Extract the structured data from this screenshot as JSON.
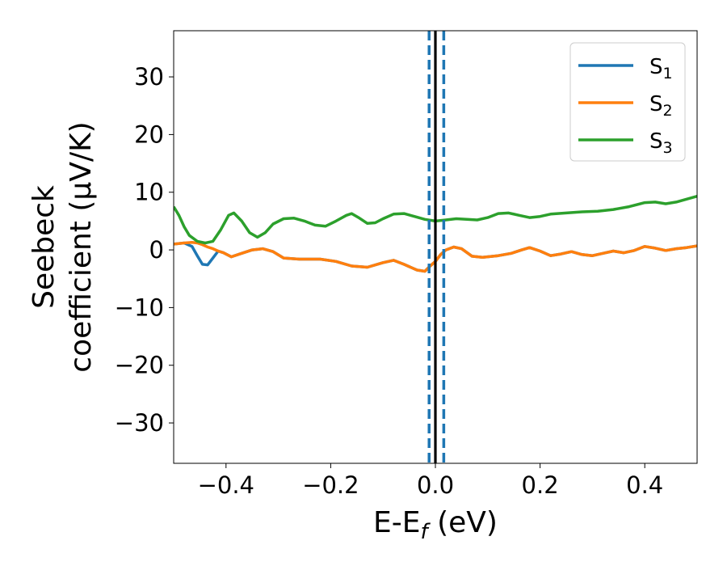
{
  "chart_data": {
    "type": "line",
    "xlabel": "E-E",
    "xlabel_sub": "f",
    "xlabel_unit": " (eV)",
    "ylabel_line1": "Seebeck",
    "ylabel_line2": "coefficient  (μV/K)",
    "xlim": [
      -0.5,
      0.5
    ],
    "ylim": [
      -37,
      38
    ],
    "xticks": [
      -0.4,
      -0.2,
      0.0,
      0.2,
      0.4
    ],
    "xtick_labels": [
      "−0.4",
      "−0.2",
      "0.0",
      "0.2",
      "0.4"
    ],
    "yticks": [
      -30,
      -20,
      -10,
      0,
      10,
      20,
      30
    ],
    "ytick_labels": [
      "−30",
      "−20",
      "−10",
      "0",
      "10",
      "20",
      "30"
    ],
    "grid": false,
    "legend_position": "top-right",
    "vlines": [
      {
        "x": 0.0,
        "style": "solid",
        "color": "#000000"
      },
      {
        "x": -0.012,
        "style": "dashed",
        "color": "#1f77b4"
      },
      {
        "x": 0.016,
        "style": "dashed",
        "color": "#1f77b4"
      }
    ],
    "series": [
      {
        "name": "S",
        "sub": "1",
        "color": "#1f77b4",
        "points": [
          [
            -0.5,
            1.0
          ],
          [
            -0.48,
            1.2
          ],
          [
            -0.465,
            0.6
          ],
          [
            -0.455,
            -1.0
          ],
          [
            -0.445,
            -2.5
          ],
          [
            -0.435,
            -2.6
          ],
          [
            -0.425,
            -1.4
          ],
          [
            -0.415,
            -0.2
          ],
          [
            -0.405,
            -0.5
          ],
          [
            -0.39,
            -1.2
          ],
          [
            -0.37,
            -0.6
          ],
          [
            -0.35,
            0.0
          ],
          [
            -0.33,
            0.2
          ],
          [
            -0.31,
            -0.3
          ],
          [
            -0.29,
            -1.4
          ],
          [
            -0.26,
            -1.6
          ],
          [
            -0.22,
            -1.6
          ],
          [
            -0.19,
            -2.0
          ],
          [
            -0.16,
            -2.8
          ],
          [
            -0.13,
            -3.0
          ],
          [
            -0.1,
            -2.2
          ],
          [
            -0.08,
            -1.8
          ],
          [
            -0.06,
            -2.5
          ],
          [
            -0.035,
            -3.5
          ],
          [
            -0.02,
            -3.7
          ],
          [
            -0.01,
            -2.8
          ],
          [
            0.0,
            -2.0
          ],
          [
            0.01,
            -0.8
          ],
          [
            0.02,
            0.0
          ],
          [
            0.035,
            0.5
          ],
          [
            0.05,
            0.2
          ],
          [
            0.07,
            -1.1
          ],
          [
            0.09,
            -1.3
          ],
          [
            0.12,
            -1.0
          ],
          [
            0.145,
            -0.6
          ],
          [
            0.165,
            0.0
          ],
          [
            0.18,
            0.4
          ],
          [
            0.2,
            -0.2
          ],
          [
            0.22,
            -1.0
          ],
          [
            0.24,
            -0.7
          ],
          [
            0.26,
            -0.3
          ],
          [
            0.28,
            -0.8
          ],
          [
            0.3,
            -1.0
          ],
          [
            0.32,
            -0.6
          ],
          [
            0.34,
            -0.2
          ],
          [
            0.36,
            -0.5
          ],
          [
            0.38,
            -0.1
          ],
          [
            0.4,
            0.6
          ],
          [
            0.42,
            0.3
          ],
          [
            0.44,
            -0.1
          ],
          [
            0.46,
            0.2
          ],
          [
            0.48,
            0.4
          ],
          [
            0.5,
            0.7
          ]
        ]
      },
      {
        "name": "S",
        "sub": "2",
        "color": "#ff7f0e",
        "points": [
          [
            -0.5,
            1.0
          ],
          [
            -0.48,
            1.2
          ],
          [
            -0.465,
            1.3
          ],
          [
            -0.455,
            1.2
          ],
          [
            -0.445,
            0.9
          ],
          [
            -0.435,
            0.5
          ],
          [
            -0.425,
            0.2
          ],
          [
            -0.415,
            -0.2
          ],
          [
            -0.405,
            -0.5
          ],
          [
            -0.39,
            -1.2
          ],
          [
            -0.37,
            -0.6
          ],
          [
            -0.35,
            0.0
          ],
          [
            -0.33,
            0.2
          ],
          [
            -0.31,
            -0.3
          ],
          [
            -0.29,
            -1.4
          ],
          [
            -0.26,
            -1.6
          ],
          [
            -0.22,
            -1.6
          ],
          [
            -0.19,
            -2.0
          ],
          [
            -0.16,
            -2.8
          ],
          [
            -0.13,
            -3.0
          ],
          [
            -0.1,
            -2.2
          ],
          [
            -0.08,
            -1.8
          ],
          [
            -0.06,
            -2.5
          ],
          [
            -0.035,
            -3.5
          ],
          [
            -0.02,
            -3.7
          ],
          [
            -0.01,
            -2.8
          ],
          [
            0.0,
            -2.0
          ],
          [
            0.01,
            -0.8
          ],
          [
            0.02,
            0.0
          ],
          [
            0.035,
            0.5
          ],
          [
            0.05,
            0.2
          ],
          [
            0.07,
            -1.1
          ],
          [
            0.09,
            -1.3
          ],
          [
            0.12,
            -1.0
          ],
          [
            0.145,
            -0.6
          ],
          [
            0.165,
            0.0
          ],
          [
            0.18,
            0.4
          ],
          [
            0.2,
            -0.2
          ],
          [
            0.22,
            -1.0
          ],
          [
            0.24,
            -0.7
          ],
          [
            0.26,
            -0.3
          ],
          [
            0.28,
            -0.8
          ],
          [
            0.3,
            -1.0
          ],
          [
            0.32,
            -0.6
          ],
          [
            0.34,
            -0.2
          ],
          [
            0.36,
            -0.5
          ],
          [
            0.38,
            -0.1
          ],
          [
            0.4,
            0.6
          ],
          [
            0.42,
            0.3
          ],
          [
            0.44,
            -0.1
          ],
          [
            0.46,
            0.2
          ],
          [
            0.48,
            0.4
          ],
          [
            0.5,
            0.7
          ]
        ]
      },
      {
        "name": "S",
        "sub": "3",
        "color": "#2ca02c",
        "points": [
          [
            -0.5,
            7.5
          ],
          [
            -0.49,
            6.0
          ],
          [
            -0.48,
            4.0
          ],
          [
            -0.47,
            2.5
          ],
          [
            -0.455,
            1.5
          ],
          [
            -0.44,
            1.2
          ],
          [
            -0.425,
            1.5
          ],
          [
            -0.41,
            3.5
          ],
          [
            -0.395,
            6.0
          ],
          [
            -0.385,
            6.4
          ],
          [
            -0.37,
            5.0
          ],
          [
            -0.355,
            3.0
          ],
          [
            -0.34,
            2.2
          ],
          [
            -0.325,
            3.0
          ],
          [
            -0.31,
            4.5
          ],
          [
            -0.29,
            5.4
          ],
          [
            -0.27,
            5.5
          ],
          [
            -0.25,
            5.0
          ],
          [
            -0.23,
            4.3
          ],
          [
            -0.21,
            4.1
          ],
          [
            -0.19,
            5.0
          ],
          [
            -0.17,
            6.0
          ],
          [
            -0.16,
            6.3
          ],
          [
            -0.145,
            5.5
          ],
          [
            -0.13,
            4.6
          ],
          [
            -0.115,
            4.7
          ],
          [
            -0.1,
            5.4
          ],
          [
            -0.08,
            6.2
          ],
          [
            -0.06,
            6.3
          ],
          [
            -0.04,
            5.8
          ],
          [
            -0.02,
            5.3
          ],
          [
            0.0,
            5.0
          ],
          [
            0.02,
            5.2
          ],
          [
            0.04,
            5.4
          ],
          [
            0.06,
            5.3
          ],
          [
            0.08,
            5.2
          ],
          [
            0.1,
            5.6
          ],
          [
            0.12,
            6.3
          ],
          [
            0.14,
            6.4
          ],
          [
            0.16,
            6.0
          ],
          [
            0.18,
            5.6
          ],
          [
            0.2,
            5.8
          ],
          [
            0.22,
            6.2
          ],
          [
            0.25,
            6.4
          ],
          [
            0.28,
            6.6
          ],
          [
            0.31,
            6.7
          ],
          [
            0.34,
            7.0
          ],
          [
            0.37,
            7.5
          ],
          [
            0.4,
            8.2
          ],
          [
            0.42,
            8.3
          ],
          [
            0.44,
            8.0
          ],
          [
            0.46,
            8.3
          ],
          [
            0.48,
            8.8
          ],
          [
            0.5,
            9.3
          ]
        ]
      }
    ]
  }
}
